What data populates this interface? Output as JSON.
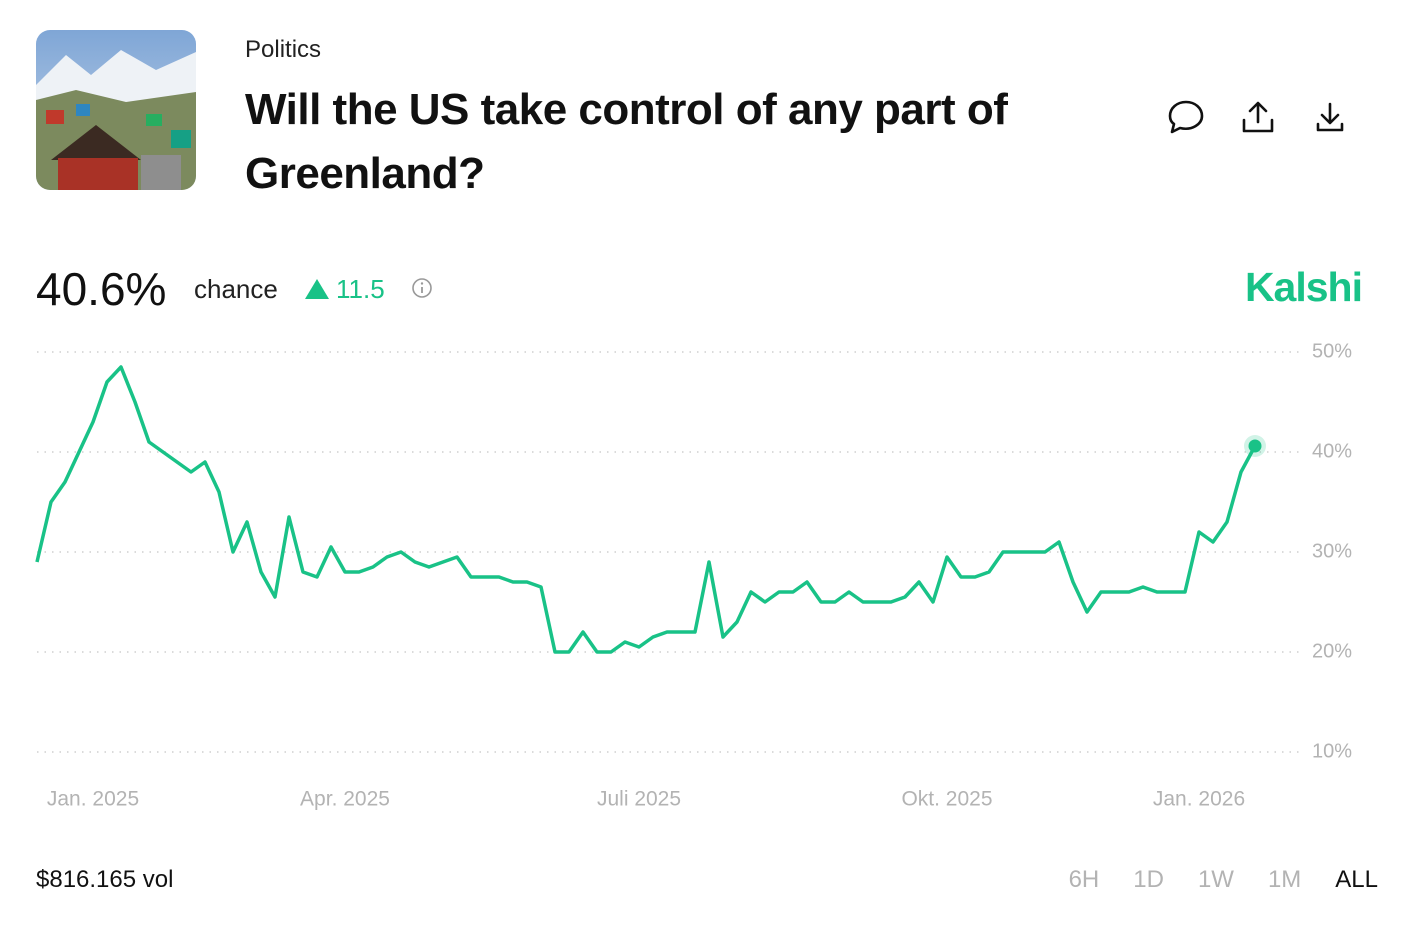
{
  "header": {
    "category": "Politics",
    "title": "Will the US take control of any part of Greenland?"
  },
  "summary": {
    "chance_value": "40.6%",
    "chance_label": "chance",
    "change": "11.5",
    "brand": "Kalshi"
  },
  "chart_data": {
    "type": "line",
    "categories": [
      null,
      null,
      null,
      null,
      "Jan. 2025",
      null,
      null,
      null,
      null,
      null,
      null,
      null,
      null,
      null,
      null,
      null,
      null,
      null,
      null,
      null,
      null,
      null,
      "Apr. 2025",
      null,
      null,
      null,
      null,
      null,
      null,
      null,
      null,
      null,
      null,
      null,
      null,
      null,
      null,
      null,
      null,
      null,
      null,
      null,
      null,
      "Juli 2025",
      null,
      null,
      null,
      null,
      null,
      null,
      null,
      null,
      null,
      null,
      null,
      null,
      null,
      null,
      null,
      null,
      null,
      null,
      null,
      null,
      null,
      "Okt. 2025",
      null,
      null,
      null,
      null,
      null,
      null,
      null,
      null,
      null,
      null,
      null,
      null,
      null,
      null,
      null,
      null,
      null,
      "Jan. 2026",
      null,
      null,
      null,
      null
    ],
    "values": [
      29,
      35,
      37,
      40,
      43,
      47,
      48.5,
      45,
      41,
      40,
      39,
      38,
      39,
      36,
      30,
      33,
      28,
      25.5,
      33.5,
      28,
      27.5,
      30.5,
      28,
      28,
      28.5,
      29.5,
      30,
      29,
      28.5,
      29,
      29.5,
      27.5,
      27.5,
      27.5,
      27,
      27,
      26.5,
      20,
      20,
      22,
      20,
      20,
      21,
      20.5,
      21.5,
      22,
      22,
      22,
      29,
      21.5,
      23,
      26,
      25,
      26,
      26,
      27,
      25,
      25,
      26,
      25,
      25,
      25,
      25.5,
      27,
      25,
      29.5,
      27.5,
      27.5,
      28,
      30,
      30,
      30,
      30,
      31,
      27,
      24,
      26,
      26,
      26,
      26.5,
      26,
      26,
      26,
      32,
      31,
      33,
      38,
      40.6
    ],
    "color": "#19c287",
    "ylim": [
      10,
      50
    ],
    "yticks": [
      {
        "value": 10,
        "label": "10%"
      },
      {
        "value": 20,
        "label": "20%"
      },
      {
        "value": 30,
        "label": "30%"
      },
      {
        "value": 40,
        "label": "40%"
      },
      {
        "value": 50,
        "label": "50%"
      }
    ],
    "grid": true
  },
  "footer": {
    "volume": "$816.165 vol",
    "ranges": [
      "6H",
      "1D",
      "1W",
      "1M",
      "ALL"
    ],
    "selected_range": "ALL"
  }
}
